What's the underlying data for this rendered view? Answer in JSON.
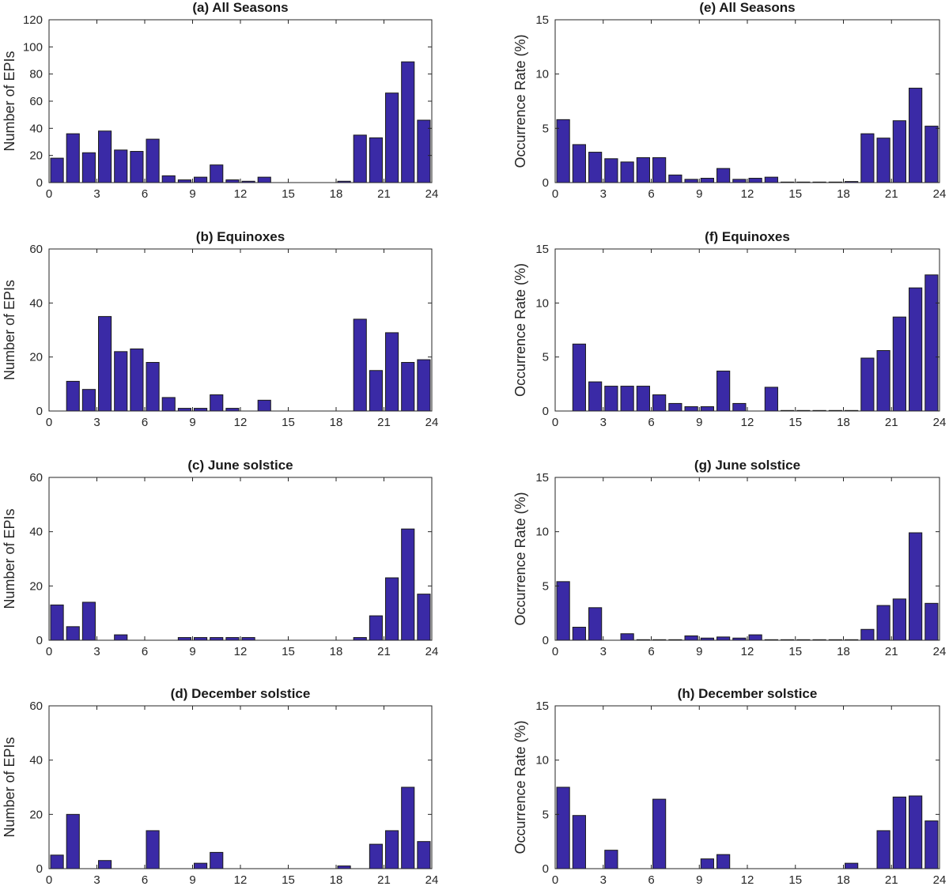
{
  "chart_data": [
    {
      "id": "a",
      "type": "bar",
      "title": "(a) All Seasons",
      "ylabel": "Number of EPIs",
      "xlabel": "",
      "ylim": [
        0,
        120
      ],
      "yticks": [
        0,
        20,
        40,
        60,
        80,
        100,
        120
      ],
      "xlim": [
        0,
        24
      ],
      "xticks": [
        0,
        3,
        6,
        9,
        12,
        15,
        18,
        21,
        24
      ],
      "x": [
        0.5,
        1.5,
        2.5,
        3.5,
        4.5,
        5.5,
        6.5,
        7.5,
        8.5,
        9.5,
        10.5,
        11.5,
        12.5,
        13.5,
        14.5,
        15.5,
        16.5,
        17.5,
        18.5,
        19.5,
        20.5,
        21.5,
        22.5,
        23.5
      ],
      "values": [
        18,
        36,
        22,
        38,
        24,
        23,
        32,
        5,
        2,
        4,
        13,
        2,
        1,
        4,
        0,
        0,
        0,
        0,
        1,
        35,
        33,
        66,
        89,
        46
      ]
    },
    {
      "id": "b",
      "type": "bar",
      "title": "(b) Equinoxes",
      "ylabel": "Number of EPIs",
      "xlabel": "",
      "ylim": [
        0,
        60
      ],
      "yticks": [
        0,
        20,
        40,
        60
      ],
      "xlim": [
        0,
        24
      ],
      "xticks": [
        0,
        3,
        6,
        9,
        12,
        15,
        18,
        21,
        24
      ],
      "x": [
        0.5,
        1.5,
        2.5,
        3.5,
        4.5,
        5.5,
        6.5,
        7.5,
        8.5,
        9.5,
        10.5,
        11.5,
        12.5,
        13.5,
        14.5,
        15.5,
        16.5,
        17.5,
        18.5,
        19.5,
        20.5,
        21.5,
        22.5,
        23.5
      ],
      "values": [
        0,
        11,
        8,
        35,
        22,
        23,
        18,
        5,
        1,
        1,
        6,
        1,
        0,
        4,
        0,
        0,
        0,
        0,
        0,
        34,
        15,
        29,
        18,
        19
      ]
    },
    {
      "id": "c",
      "type": "bar",
      "title": "(c) June solstice",
      "ylabel": "Number of EPIs",
      "xlabel": "",
      "ylim": [
        0,
        60
      ],
      "yticks": [
        0,
        20,
        40,
        60
      ],
      "xlim": [
        0,
        24
      ],
      "xticks": [
        0,
        3,
        6,
        9,
        12,
        15,
        18,
        21,
        24
      ],
      "x": [
        0.5,
        1.5,
        2.5,
        3.5,
        4.5,
        5.5,
        6.5,
        7.5,
        8.5,
        9.5,
        10.5,
        11.5,
        12.5,
        13.5,
        14.5,
        15.5,
        16.5,
        17.5,
        18.5,
        19.5,
        20.5,
        21.5,
        22.5,
        23.5
      ],
      "values": [
        13,
        5,
        14,
        0,
        2,
        0,
        0,
        0,
        1,
        1,
        1,
        1,
        1,
        0,
        0,
        0,
        0,
        0,
        0,
        1,
        9,
        23,
        41,
        17
      ]
    },
    {
      "id": "d",
      "type": "bar",
      "title": "(d) December solstice",
      "ylabel": "Number of EPIs",
      "xlabel": "",
      "ylim": [
        0,
        60
      ],
      "yticks": [
        0,
        20,
        40,
        60
      ],
      "xlim": [
        0,
        24
      ],
      "xticks": [
        0,
        3,
        6,
        9,
        12,
        15,
        18,
        21,
        24
      ],
      "x": [
        0.5,
        1.5,
        2.5,
        3.5,
        4.5,
        5.5,
        6.5,
        7.5,
        8.5,
        9.5,
        10.5,
        11.5,
        12.5,
        13.5,
        14.5,
        15.5,
        16.5,
        17.5,
        18.5,
        19.5,
        20.5,
        21.5,
        22.5,
        23.5
      ],
      "values": [
        5,
        20,
        0,
        3,
        0,
        0,
        14,
        0,
        0,
        2,
        6,
        0,
        0,
        0,
        0,
        0,
        0,
        0,
        1,
        0,
        9,
        14,
        30,
        10
      ]
    },
    {
      "id": "e",
      "type": "bar",
      "title": "(e) All Seasons",
      "ylabel": "Occurrence Rate (%)",
      "xlabel": "",
      "ylim": [
        0,
        15
      ],
      "yticks": [
        0,
        5,
        10,
        15
      ],
      "xlim": [
        0,
        24
      ],
      "xticks": [
        0,
        3,
        6,
        9,
        12,
        15,
        18,
        21,
        24
      ],
      "x": [
        0.5,
        1.5,
        2.5,
        3.5,
        4.5,
        5.5,
        6.5,
        7.5,
        8.5,
        9.5,
        10.5,
        11.5,
        12.5,
        13.5,
        14.5,
        15.5,
        16.5,
        17.5,
        18.5,
        19.5,
        20.5,
        21.5,
        22.5,
        23.5
      ],
      "values": [
        5.8,
        3.5,
        2.8,
        2.2,
        1.9,
        2.3,
        2.3,
        0.7,
        0.3,
        0.4,
        1.3,
        0.3,
        0.4,
        0.5,
        0.05,
        0.05,
        0.05,
        0.05,
        0.1,
        4.5,
        4.1,
        5.7,
        8.7,
        5.2
      ]
    },
    {
      "id": "f",
      "type": "bar",
      "title": "(f) Equinoxes",
      "ylabel": "Occurrence Rate (%)",
      "xlabel": "",
      "ylim": [
        0,
        15
      ],
      "yticks": [
        0,
        5,
        10,
        15
      ],
      "xlim": [
        0,
        24
      ],
      "xticks": [
        0,
        3,
        6,
        9,
        12,
        15,
        18,
        21,
        24
      ],
      "x": [
        0.5,
        1.5,
        2.5,
        3.5,
        4.5,
        5.5,
        6.5,
        7.5,
        8.5,
        9.5,
        10.5,
        11.5,
        12.5,
        13.5,
        14.5,
        15.5,
        16.5,
        17.5,
        18.5,
        19.5,
        20.5,
        21.5,
        22.5,
        23.5
      ],
      "values": [
        0,
        6.2,
        2.7,
        2.3,
        2.3,
        2.3,
        1.5,
        0.7,
        0.4,
        0.4,
        3.7,
        0.7,
        0,
        2.2,
        0.05,
        0.05,
        0.05,
        0.05,
        0.05,
        4.9,
        5.6,
        8.7,
        11.4,
        12.6
      ]
    },
    {
      "id": "g",
      "type": "bar",
      "title": "(g) June solstice",
      "ylabel": "Occurrence Rate (%)",
      "xlabel": "",
      "ylim": [
        0,
        15
      ],
      "yticks": [
        0,
        5,
        10,
        15
      ],
      "xlim": [
        0,
        24
      ],
      "xticks": [
        0,
        3,
        6,
        9,
        12,
        15,
        18,
        21,
        24
      ],
      "x": [
        0.5,
        1.5,
        2.5,
        3.5,
        4.5,
        5.5,
        6.5,
        7.5,
        8.5,
        9.5,
        10.5,
        11.5,
        12.5,
        13.5,
        14.5,
        15.5,
        16.5,
        17.5,
        18.5,
        19.5,
        20.5,
        21.5,
        22.5,
        23.5
      ],
      "values": [
        5.4,
        1.2,
        3.0,
        0,
        0.6,
        0.05,
        0.05,
        0.05,
        0.4,
        0.2,
        0.3,
        0.2,
        0.5,
        0.05,
        0.05,
        0.05,
        0.05,
        0.05,
        0.05,
        1.0,
        3.2,
        3.8,
        9.9,
        3.4
      ]
    },
    {
      "id": "h",
      "type": "bar",
      "title": "(h) December solstice",
      "ylabel": "Occurrence Rate (%)",
      "xlabel": "",
      "ylim": [
        0,
        15
      ],
      "yticks": [
        0,
        5,
        10,
        15
      ],
      "xlim": [
        0,
        24
      ],
      "xticks": [
        0,
        3,
        6,
        9,
        12,
        15,
        18,
        21,
        24
      ],
      "x": [
        0.5,
        1.5,
        2.5,
        3.5,
        4.5,
        5.5,
        6.5,
        7.5,
        8.5,
        9.5,
        10.5,
        11.5,
        12.5,
        13.5,
        14.5,
        15.5,
        16.5,
        17.5,
        18.5,
        19.5,
        20.5,
        21.5,
        22.5,
        23.5
      ],
      "values": [
        7.5,
        4.9,
        0,
        1.7,
        0,
        0,
        6.4,
        0,
        0,
        0.9,
        1.3,
        0,
        0,
        0,
        0,
        0,
        0,
        0,
        0.5,
        0,
        3.5,
        6.6,
        6.7,
        4.4
      ]
    }
  ]
}
